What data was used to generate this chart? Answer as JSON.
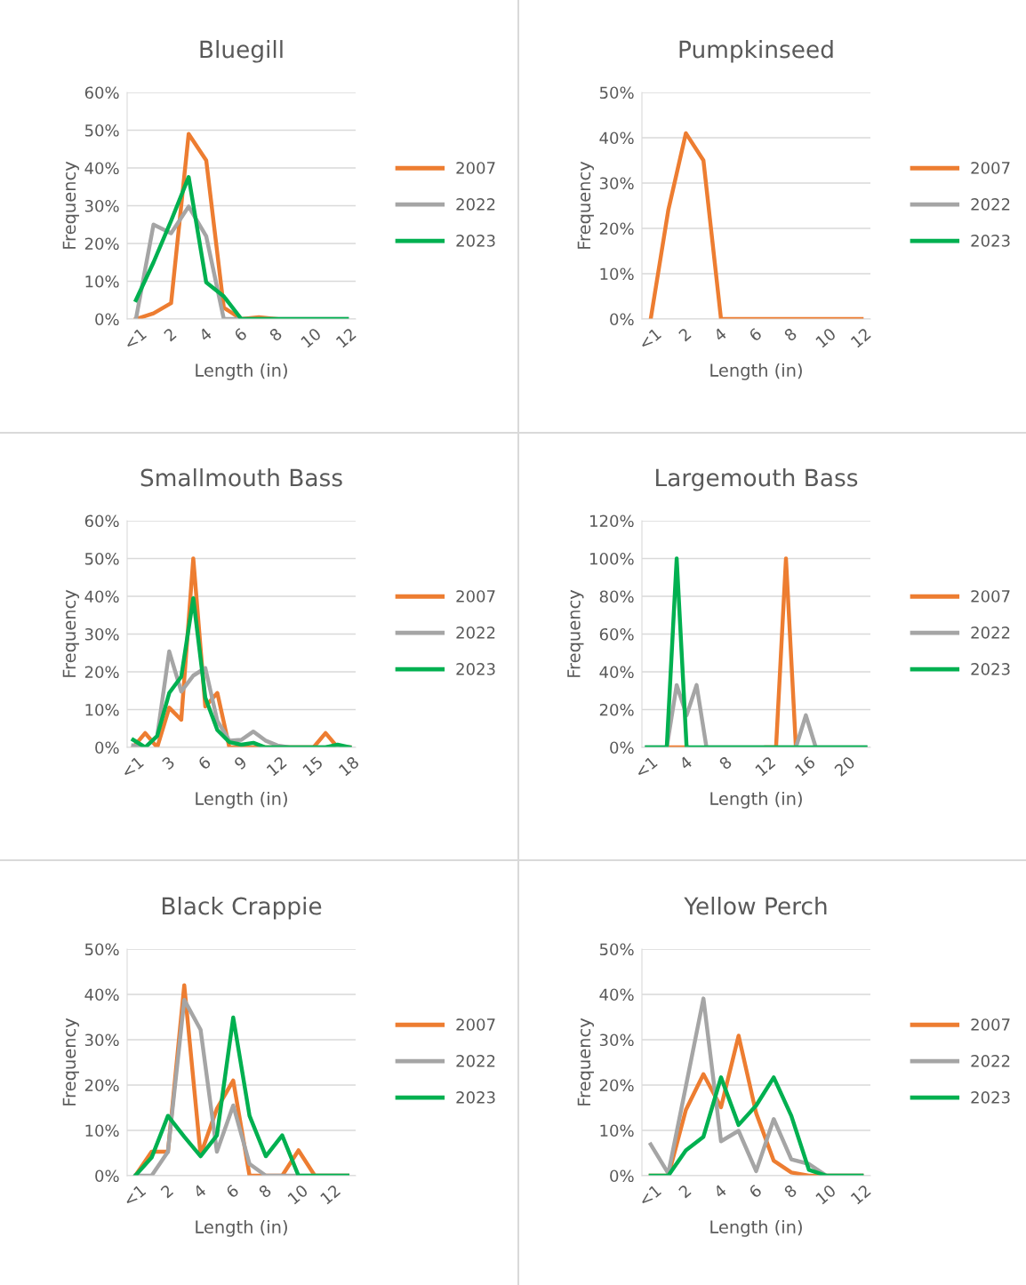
{
  "chart_data": [
    {
      "type": "line",
      "title": "Bluegill",
      "xlabel": "Length (in)",
      "ylabel": "Frequency",
      "grid": "y",
      "legend": "right",
      "categories": [
        "<1",
        null,
        "2",
        null,
        "4",
        null,
        "6",
        null,
        "8",
        null,
        "10",
        null,
        "12"
      ],
      "ylim": [
        0,
        60
      ],
      "yticks": [
        {
          "value": 0,
          "label": "0%"
        },
        {
          "value": 10,
          "label": "10%"
        },
        {
          "value": 20,
          "label": "20%"
        },
        {
          "value": 30,
          "label": "30%"
        },
        {
          "value": 40,
          "label": "40%"
        },
        {
          "value": 50,
          "label": "50%"
        },
        {
          "value": 60,
          "label": "60%"
        }
      ],
      "series": [
        {
          "name": "2007",
          "color": "#ed7d31",
          "values": [
            0,
            1.5,
            4.2,
            49,
            42,
            3,
            0,
            0.5,
            0,
            null,
            null,
            null,
            null
          ]
        },
        {
          "name": "2022",
          "color": "#a5a5a5",
          "values": [
            0,
            25,
            22.7,
            29.8,
            21.9,
            0,
            0,
            0,
            0,
            0,
            0,
            0,
            0
          ]
        },
        {
          "name": "2023",
          "color": "#00b050",
          "values": [
            5,
            15,
            26,
            37.6,
            9.7,
            6,
            0,
            0,
            0,
            0,
            0,
            0,
            0
          ]
        }
      ]
    },
    {
      "type": "line",
      "title": "Pumpkinseed",
      "xlabel": "Length (in)",
      "ylabel": "Frequency",
      "grid": "y",
      "legend": "right",
      "categories": [
        "<1",
        null,
        "2",
        null,
        "4",
        null,
        "6",
        null,
        "8",
        null,
        "10",
        null,
        "12"
      ],
      "ylim": [
        0,
        50
      ],
      "yticks": [
        {
          "value": 0,
          "label": "0%"
        },
        {
          "value": 10,
          "label": "10%"
        },
        {
          "value": 20,
          "label": "20%"
        },
        {
          "value": 30,
          "label": "30%"
        },
        {
          "value": 40,
          "label": "40%"
        },
        {
          "value": 50,
          "label": "50%"
        }
      ],
      "series": [
        {
          "name": "2007",
          "color": "#ed7d31",
          "values": [
            0,
            24,
            41,
            35,
            0,
            0,
            0,
            0,
            0,
            0,
            0,
            0,
            0
          ]
        },
        {
          "name": "2022",
          "color": "#a5a5a5",
          "values": [
            null,
            null,
            null,
            null,
            null,
            null,
            null,
            null,
            null,
            null,
            null,
            null,
            null
          ]
        },
        {
          "name": "2023",
          "color": "#00b050",
          "values": [
            null,
            null,
            null,
            null,
            null,
            null,
            null,
            null,
            null,
            null,
            null,
            null,
            null
          ]
        }
      ]
    },
    {
      "type": "line",
      "title": "Smallmouth Bass",
      "xlabel": "Length (in)",
      "ylabel": "Frequency",
      "grid": "y",
      "legend": "right",
      "categories": [
        "<1",
        null,
        null,
        "3",
        null,
        null,
        "6",
        null,
        null,
        "9",
        null,
        null,
        "12",
        null,
        null,
        "15",
        null,
        null,
        "18"
      ],
      "ylim": [
        0,
        60
      ],
      "yticks": [
        {
          "value": 0,
          "label": "0%"
        },
        {
          "value": 10,
          "label": "10%"
        },
        {
          "value": 20,
          "label": "20%"
        },
        {
          "value": 30,
          "label": "30%"
        },
        {
          "value": 40,
          "label": "40%"
        },
        {
          "value": 50,
          "label": "50%"
        },
        {
          "value": 60,
          "label": "60%"
        }
      ],
      "series": [
        {
          "name": "2007",
          "color": "#ed7d31",
          "values": [
            0,
            3.8,
            0,
            10.5,
            7.3,
            50,
            10.8,
            14.4,
            0,
            0,
            0,
            0,
            0,
            0,
            0,
            0,
            3.8,
            0,
            0
          ]
        },
        {
          "name": "2022",
          "color": "#a5a5a5",
          "values": [
            0.5,
            0,
            3,
            25.4,
            14.8,
            19,
            21,
            7,
            1.8,
            2,
            4.2,
            1.8,
            0.5,
            0,
            0,
            0,
            0,
            0,
            0
          ]
        },
        {
          "name": "2023",
          "color": "#00b050",
          "values": [
            2,
            0,
            3,
            14.4,
            18.7,
            39.5,
            13.2,
            4.6,
            1.4,
            0.7,
            1.2,
            0,
            0,
            0,
            0,
            0,
            0,
            0.7,
            0
          ]
        }
      ]
    },
    {
      "type": "line",
      "title": "Largemouth Bass",
      "xlabel": "Length (in)",
      "ylabel": "Frequency",
      "grid": "y",
      "legend": "right",
      "categories": [
        "<1",
        null,
        null,
        null,
        "4",
        null,
        null,
        null,
        "8",
        null,
        null,
        null,
        "12",
        null,
        null,
        null,
        "16",
        null,
        null,
        null,
        "20",
        null,
        null
      ],
      "ylim": [
        0,
        120
      ],
      "yticks": [
        {
          "value": 0,
          "label": "0%"
        },
        {
          "value": 20,
          "label": "20%"
        },
        {
          "value": 40,
          "label": "40%"
        },
        {
          "value": 60,
          "label": "60%"
        },
        {
          "value": 80,
          "label": "80%"
        },
        {
          "value": 100,
          "label": "100%"
        },
        {
          "value": 120,
          "label": "120%"
        }
      ],
      "series": [
        {
          "name": "2007",
          "color": "#ed7d31",
          "values": [
            null,
            null,
            0,
            0,
            0,
            null,
            null,
            null,
            null,
            null,
            null,
            null,
            0,
            0,
            100,
            0,
            null,
            null,
            null,
            null,
            null,
            null,
            null
          ]
        },
        {
          "name": "2022",
          "color": "#a5a5a5",
          "values": [
            0,
            0,
            0,
            33,
            17,
            33,
            0,
            0,
            0,
            0,
            0,
            0,
            0,
            0,
            0,
            0,
            17,
            0,
            0,
            0,
            0,
            0,
            0
          ]
        },
        {
          "name": "2023",
          "color": "#00b050",
          "values": [
            0,
            0,
            0,
            100,
            0,
            0,
            0,
            0,
            0,
            0,
            0,
            0,
            0,
            0,
            0,
            0,
            0,
            0,
            0,
            0,
            0,
            0,
            0
          ]
        }
      ]
    },
    {
      "type": "line",
      "title": "Black Crappie",
      "xlabel": "Length (in)",
      "ylabel": "Frequency",
      "grid": "y",
      "legend": "right",
      "categories": [
        "<1",
        null,
        "2",
        null,
        "4",
        null,
        "6",
        null,
        "8",
        null,
        "10",
        null,
        "12",
        null
      ],
      "ylim": [
        0,
        50
      ],
      "yticks": [
        {
          "value": 0,
          "label": "0%"
        },
        {
          "value": 10,
          "label": "10%"
        },
        {
          "value": 20,
          "label": "20%"
        },
        {
          "value": 30,
          "label": "30%"
        },
        {
          "value": 40,
          "label": "40%"
        },
        {
          "value": 50,
          "label": "50%"
        }
      ],
      "series": [
        {
          "name": "2007",
          "color": "#ed7d31",
          "values": [
            0,
            5.3,
            5.3,
            42,
            4.6,
            14.8,
            21,
            0,
            0,
            0,
            5.6,
            0,
            0,
            0
          ]
        },
        {
          "name": "2022",
          "color": "#a5a5a5",
          "values": [
            0,
            0,
            5.3,
            38.8,
            32.2,
            5.3,
            15.5,
            2.6,
            0,
            0,
            0,
            0,
            0,
            0
          ]
        },
        {
          "name": "2023",
          "color": "#00b050",
          "values": [
            0,
            4,
            13.2,
            8.6,
            4.3,
            8.9,
            34.9,
            13.2,
            4.3,
            8.9,
            0,
            0,
            0,
            0
          ]
        }
      ]
    },
    {
      "type": "line",
      "title": "Yellow Perch",
      "xlabel": "Length (in)",
      "ylabel": "Frequency",
      "grid": "y",
      "legend": "right",
      "categories": [
        "<1",
        null,
        "2",
        null,
        "4",
        null,
        "6",
        null,
        "8",
        null,
        "10",
        null,
        "12"
      ],
      "ylim": [
        0,
        50
      ],
      "yticks": [
        {
          "value": 0,
          "label": "0%"
        },
        {
          "value": 10,
          "label": "10%"
        },
        {
          "value": 20,
          "label": "20%"
        },
        {
          "value": 30,
          "label": "30%"
        },
        {
          "value": 40,
          "label": "40%"
        },
        {
          "value": 50,
          "label": "50%"
        }
      ],
      "series": [
        {
          "name": "2007",
          "color": "#ed7d31",
          "values": [
            0,
            0,
            14.5,
            22.4,
            15.1,
            30.9,
            13.8,
            3.3,
            0.7,
            0,
            0,
            0,
            0
          ]
        },
        {
          "name": "2022",
          "color": "#a5a5a5",
          "values": [
            6.9,
            0.5,
            19.7,
            39.1,
            7.6,
            9.9,
            1,
            12.5,
            3.6,
            2.6,
            0,
            0,
            0
          ]
        },
        {
          "name": "2023",
          "color": "#00b050",
          "values": [
            0,
            0,
            5.6,
            8.6,
            21.7,
            11.2,
            15.5,
            21.7,
            13.2,
            1.3,
            0,
            0,
            0
          ]
        }
      ]
    }
  ]
}
